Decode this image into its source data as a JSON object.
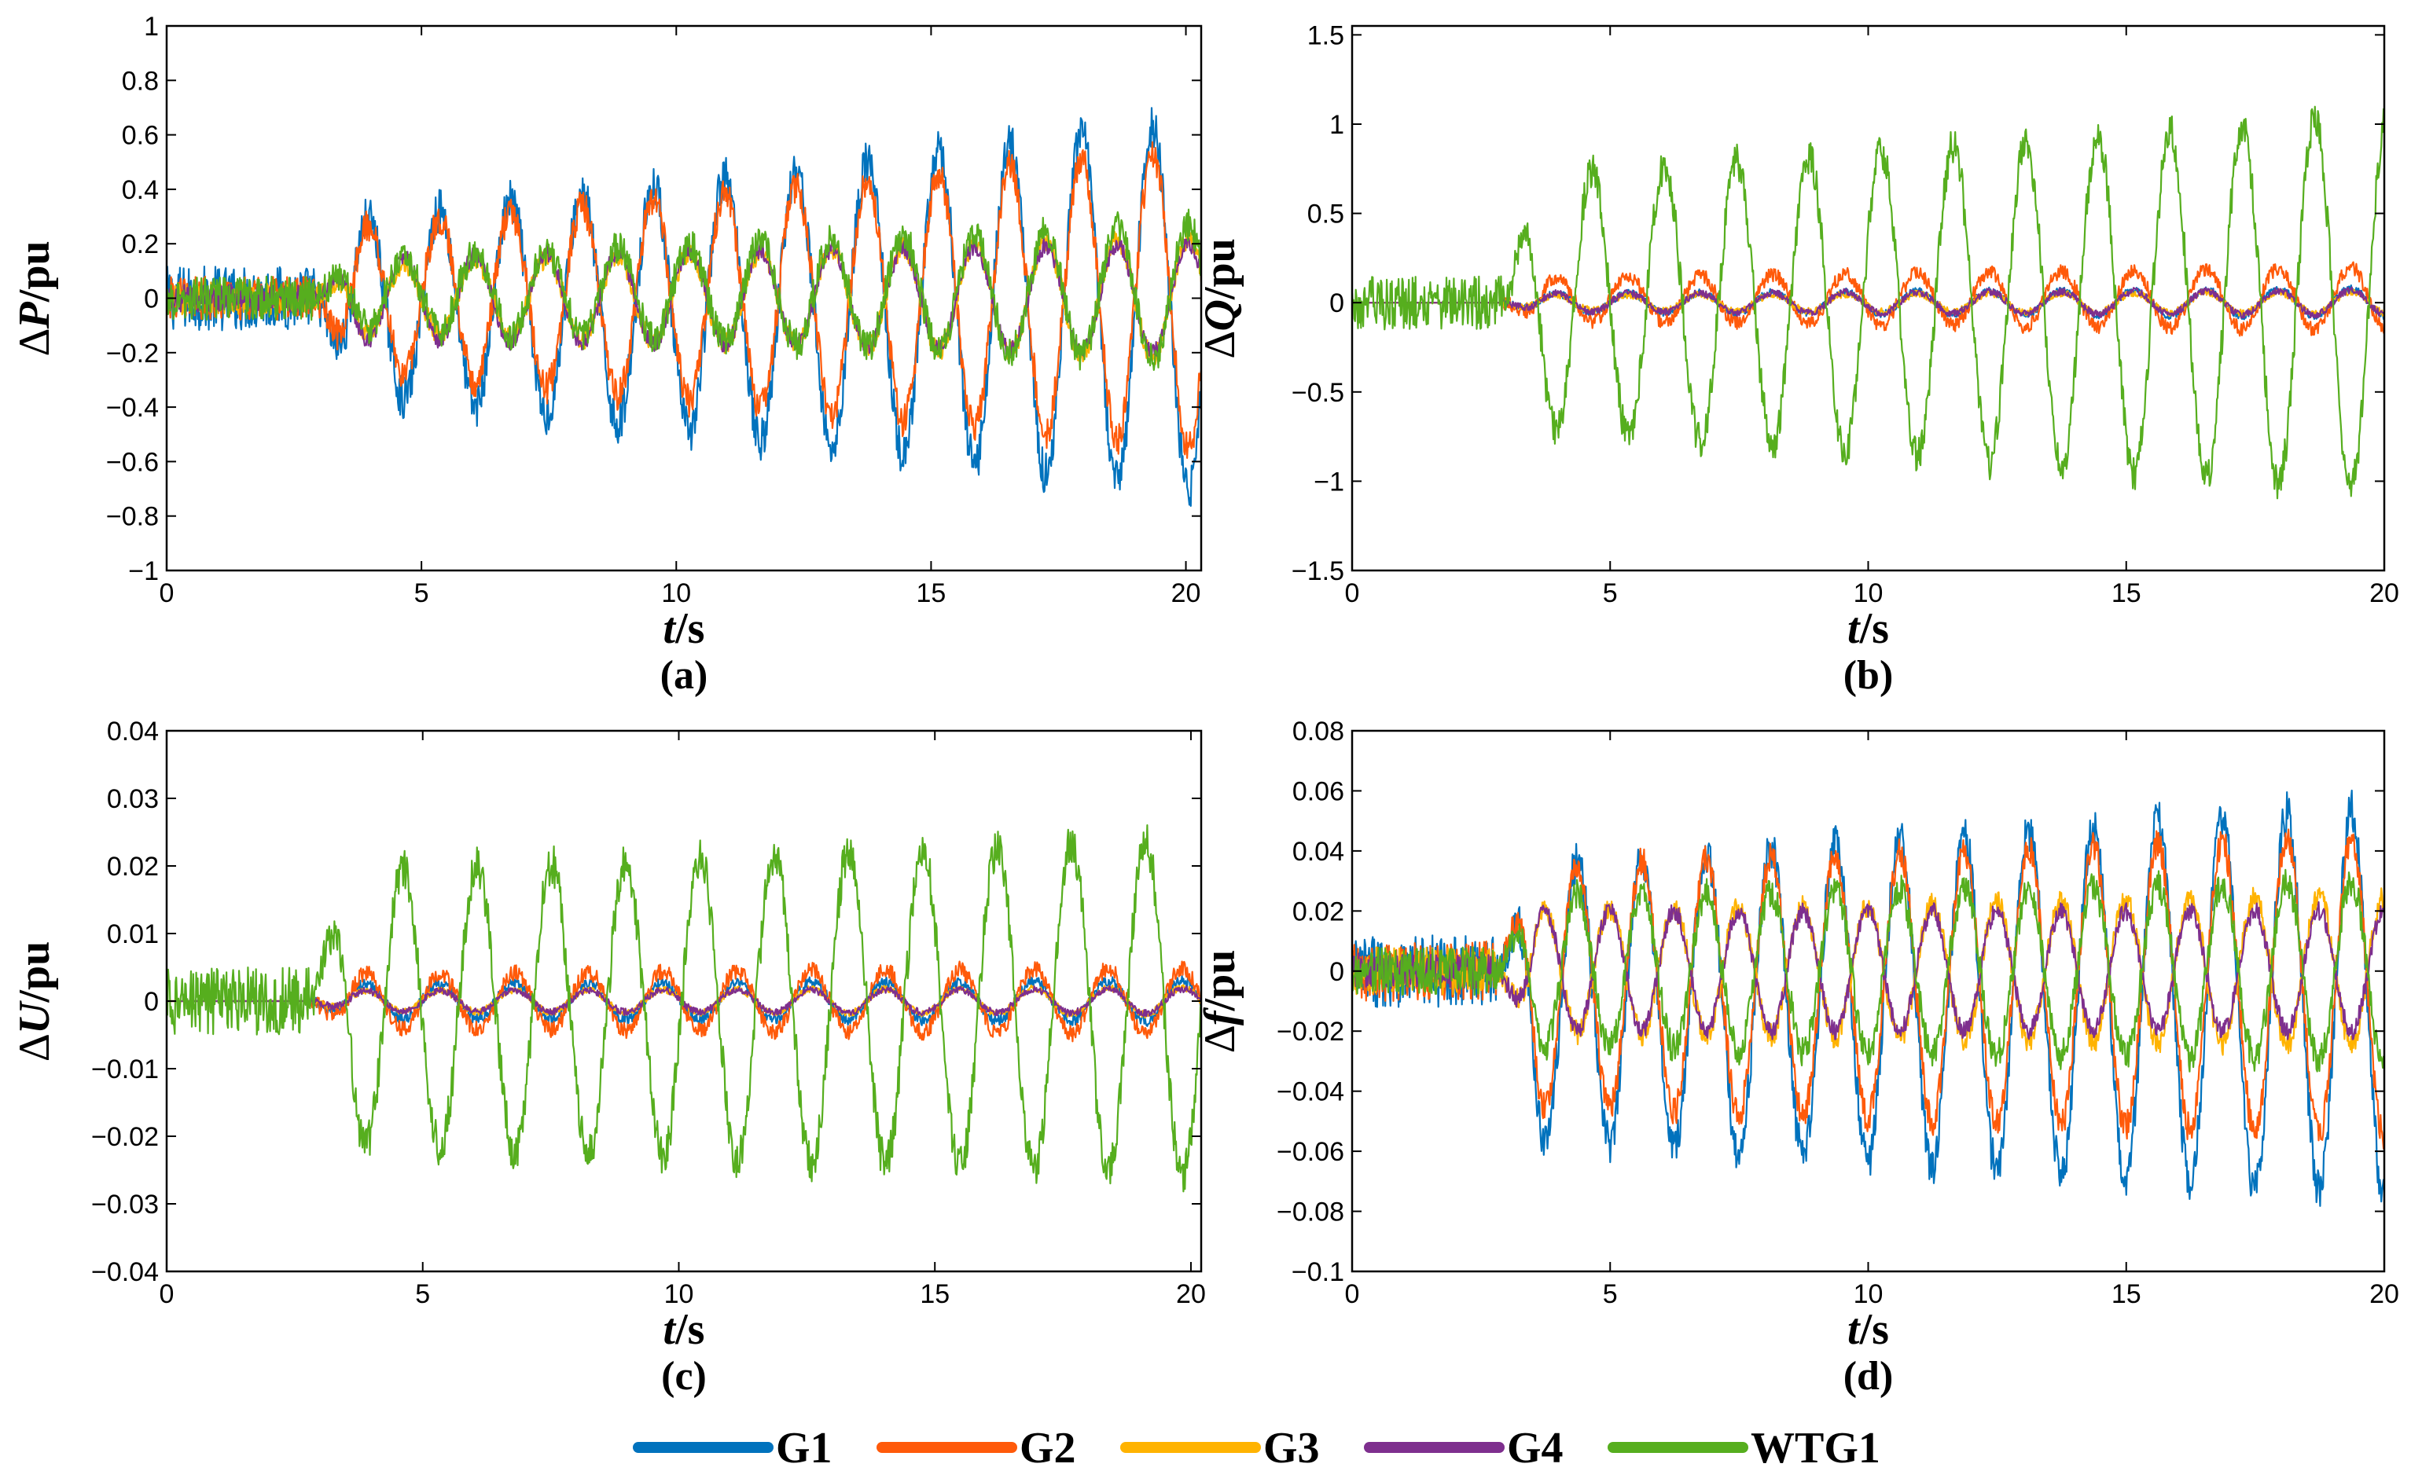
{
  "chart_data": [
    {
      "type": "line",
      "panel_label": "(a)",
      "ylabel": {
        "symbol": "∆",
        "var": "P",
        "unit": "/pu"
      },
      "xlabel": {
        "var": "t",
        "unit": "/s"
      },
      "xlim": [
        0,
        20.3
      ],
      "ylim": [
        -1,
        1
      ],
      "xticks": [
        0,
        5,
        10,
        15,
        20
      ],
      "xtick_labels": [
        "0",
        "5",
        "10",
        "15",
        "20"
      ],
      "yticks": [
        -1,
        -0.8,
        -0.6,
        -0.4,
        -0.2,
        0,
        0.2,
        0.4,
        0.6,
        0.8,
        1
      ],
      "ytick_labels": [
        "−1",
        "−0.8",
        "−0.6",
        "−0.4",
        "−0.2",
        "0",
        "0.2",
        "0.4",
        "0.6",
        "0.8",
        "1"
      ],
      "fault_time_s": 2.9,
      "oscillation_period_s": 1.4,
      "series": [
        {
          "name": "G1",
          "color": "#0072BD",
          "pre_noise": 0.12,
          "amp_start": 0.3,
          "amp_end": 0.68,
          "phase": 3.1416,
          "noise": 0.08,
          "offset": -0.03
        },
        {
          "name": "G2",
          "color": "#FF5A0A",
          "pre_noise": 0.08,
          "amp_start": 0.25,
          "amp_end": 0.55,
          "phase": 3.1416,
          "noise": 0.06,
          "offset": 0
        },
        {
          "name": "G3",
          "color": "#FFB300",
          "pre_noise": 0.06,
          "amp_start": 0.12,
          "amp_end": 0.22,
          "phase": 0,
          "noise": 0.04,
          "offset": 0
        },
        {
          "name": "G4",
          "color": "#7E2F8E",
          "pre_noise": 0.05,
          "amp_start": 0.15,
          "amp_end": 0.2,
          "phase": 0,
          "noise": 0.03,
          "offset": 0
        },
        {
          "name": "WTG1",
          "color": "#56AE1E",
          "pre_noise": 0.08,
          "amp_start": 0.12,
          "amp_end": 0.25,
          "phase": 0,
          "noise": 0.06,
          "offset": 0.02
        }
      ]
    },
    {
      "type": "line",
      "panel_label": "(b)",
      "ylabel": {
        "symbol": "∆",
        "var": "Q",
        "unit": "/pu"
      },
      "xlabel": {
        "var": "t",
        "unit": "/s"
      },
      "xlim": [
        0,
        20
      ],
      "ylim": [
        -1.5,
        1.55
      ],
      "xticks": [
        0,
        5,
        10,
        15,
        20
      ],
      "xtick_labels": [
        "0",
        "5",
        "10",
        "15",
        "20"
      ],
      "yticks": [
        -1.5,
        -1,
        -0.5,
        0,
        0.5,
        1,
        1.5
      ],
      "ytick_labels": [
        "−1.5",
        "−1",
        "−0.5",
        "0",
        "0.5",
        "1",
        "1.5"
      ],
      "fault_time_s": 2.9,
      "oscillation_period_s": 1.4,
      "series": [
        {
          "name": "G1",
          "color": "#0072BD",
          "pre_noise": 0,
          "amp_start": 0.05,
          "amp_end": 0.08,
          "phase": 3.1416,
          "noise": 0.02,
          "offset": 0
        },
        {
          "name": "G2",
          "color": "#FF5A0A",
          "pre_noise": 0,
          "amp_start": 0.12,
          "amp_end": 0.18,
          "phase": 3.1416,
          "noise": 0.04,
          "offset": 0.02
        },
        {
          "name": "G3",
          "color": "#FFB300",
          "pre_noise": 0,
          "amp_start": 0.04,
          "amp_end": 0.06,
          "phase": 3.1416,
          "noise": 0.02,
          "offset": 0
        },
        {
          "name": "G4",
          "color": "#7E2F8E",
          "pre_noise": 0,
          "amp_start": 0.05,
          "amp_end": 0.07,
          "phase": 3.1416,
          "noise": 0.02,
          "offset": 0
        },
        {
          "name": "WTG1",
          "color": "#56AE1E",
          "pre_noise": 0.15,
          "amp_start": 0.7,
          "amp_end": 1.05,
          "phase": 0,
          "noise": 0.1,
          "offset": 0
        }
      ]
    },
    {
      "type": "line",
      "panel_label": "(c)",
      "ylabel": {
        "symbol": "∆",
        "var": "U",
        "unit": "/pu"
      },
      "xlabel": {
        "var": "t",
        "unit": "/s"
      },
      "xlim": [
        0,
        20.2
      ],
      "ylim": [
        -0.04,
        0.04
      ],
      "xticks": [
        0,
        5,
        10,
        15,
        20
      ],
      "xtick_labels": [
        "0",
        "5",
        "10",
        "15",
        "20"
      ],
      "yticks": [
        -0.04,
        -0.03,
        -0.02,
        -0.01,
        0,
        0.01,
        0.02,
        0.03,
        0.04
      ],
      "ytick_labels": [
        "−0.04",
        "−0.03",
        "−0.02",
        "−0.01",
        "0",
        "0.01",
        "0.02",
        "0.03",
        "0.04"
      ],
      "fault_time_s": 2.8,
      "oscillation_period_s": 1.45,
      "series": [
        {
          "name": "G1",
          "color": "#0072BD",
          "pre_noise": 0,
          "amp_start": 0.0025,
          "amp_end": 0.003,
          "phase": 3.1416,
          "noise": 0.0008,
          "offset": 0
        },
        {
          "name": "G2",
          "color": "#FF5A0A",
          "pre_noise": 0,
          "amp_start": 0.004,
          "amp_end": 0.005,
          "phase": 3.1416,
          "noise": 0.0012,
          "offset": 0
        },
        {
          "name": "G3",
          "color": "#FFB300",
          "pre_noise": 0,
          "amp_start": 0.0015,
          "amp_end": 0.002,
          "phase": 3.1416,
          "noise": 0.0005,
          "offset": 0
        },
        {
          "name": "G4",
          "color": "#7E2F8E",
          "pre_noise": 0,
          "amp_start": 0.0015,
          "amp_end": 0.0018,
          "phase": 3.1416,
          "noise": 0.0005,
          "offset": 0
        },
        {
          "name": "WTG1",
          "color": "#56AE1E",
          "pre_noise": 0.005,
          "amp_start": 0.02,
          "amp_end": 0.025,
          "phase": 0,
          "noise": 0.003,
          "offset": -0.001
        }
      ]
    },
    {
      "type": "line",
      "panel_label": "(d)",
      "ylabel": {
        "symbol": "∆",
        "var": "f",
        "unit": "/pu"
      },
      "xlabel": {
        "var": "t",
        "unit": "/s"
      },
      "xlim": [
        0,
        20
      ],
      "ylim": [
        -0.1,
        0.08
      ],
      "xticks": [
        0,
        5,
        10,
        15,
        20
      ],
      "xtick_labels": [
        "0",
        "5",
        "10",
        "15",
        "20"
      ],
      "yticks": [
        -0.1,
        -0.08,
        -0.06,
        -0.04,
        -0.02,
        0,
        0.02,
        0.04,
        0.06,
        0.08
      ],
      "ytick_labels": [
        "−0.1",
        "−0.08",
        "−0.06",
        "−0.04",
        "−0.02",
        "0",
        "0.02",
        "0.04",
        "0.06",
        "0.08"
      ],
      "fault_time_s": 2.8,
      "oscillation_period_s": 1.25,
      "series": [
        {
          "name": "G1",
          "color": "#0072BD",
          "pre_noise": 0.012,
          "amp_start": 0.045,
          "amp_end": 0.065,
          "phase": 0,
          "noise": 0.007,
          "offset": -0.01
        },
        {
          "name": "G2",
          "color": "#FF5A0A",
          "pre_noise": 0.01,
          "amp_start": 0.04,
          "amp_end": 0.05,
          "phase": 0,
          "noise": 0.005,
          "offset": -0.005
        },
        {
          "name": "G3",
          "color": "#FFB300",
          "pre_noise": 0.008,
          "amp_start": 0.02,
          "amp_end": 0.025,
          "phase": 3.1416,
          "noise": 0.004,
          "offset": 0
        },
        {
          "name": "G4",
          "color": "#7E2F8E",
          "pre_noise": 0.006,
          "amp_start": 0.02,
          "amp_end": 0.02,
          "phase": 3.1416,
          "noise": 0.003,
          "offset": 0
        },
        {
          "name": "WTG1",
          "color": "#56AE1E",
          "pre_noise": 0.008,
          "amp_start": 0.025,
          "amp_end": 0.03,
          "phase": 0,
          "noise": 0.005,
          "offset": 0
        }
      ]
    }
  ],
  "legend": {
    "placement": "bottom-center",
    "entries": [
      {
        "name": "G1",
        "color": "#0072BD"
      },
      {
        "name": "G2",
        "color": "#FF5A0A"
      },
      {
        "name": "G3",
        "color": "#FFB300"
      },
      {
        "name": "G4",
        "color": "#7E2F8E"
      },
      {
        "name": "WTG1",
        "color": "#56AE1E"
      }
    ]
  }
}
